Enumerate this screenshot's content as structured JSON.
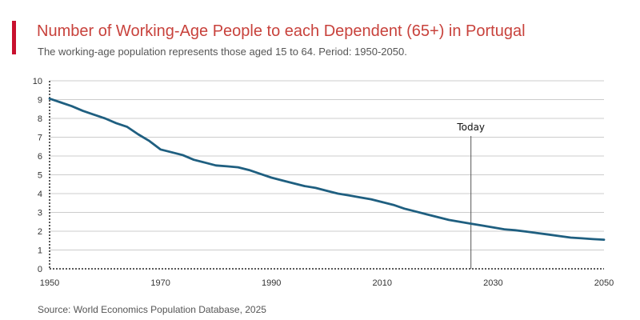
{
  "header": {
    "title": "Number of Working-Age People to each Dependent (65+) in Portugal",
    "subtitle": "The working-age population represents those aged 15 to 64. Period: 1950-2050."
  },
  "footer": {
    "source": "Source: World Economics Population Database, 2025"
  },
  "colors": {
    "accent": "#c8102e",
    "title": "#c8423c",
    "line": "#1f5f80",
    "grid": "#cccccc",
    "marker": "#555555"
  },
  "chart_data": {
    "type": "line",
    "title": "Number of Working-Age People to each Dependent (65+) in Portugal",
    "xlabel": "",
    "ylabel": "",
    "xlim": [
      1950,
      2050
    ],
    "ylim": [
      0,
      10
    ],
    "x_ticks": [
      1950,
      1970,
      1990,
      2010,
      2030,
      2050
    ],
    "y_ticks": [
      0,
      1,
      2,
      3,
      4,
      5,
      6,
      7,
      8,
      9,
      10
    ],
    "grid": true,
    "annotations": [
      {
        "label": "Today",
        "x": 2026
      }
    ],
    "series": [
      {
        "x": [
          1950,
          1952,
          1954,
          1956,
          1958,
          1960,
          1962,
          1964,
          1966,
          1968,
          1970,
          1972,
          1974,
          1976,
          1978,
          1980,
          1982,
          1984,
          1986,
          1988,
          1990,
          1992,
          1994,
          1996,
          1998,
          2000,
          2002,
          2004,
          2006,
          2008,
          2010,
          2012,
          2014,
          2016,
          2018,
          2020,
          2022,
          2024,
          2026,
          2028,
          2030,
          2032,
          2034,
          2036,
          2038,
          2040,
          2042,
          2044,
          2046,
          2048,
          2050
        ],
        "values": [
          9.05,
          8.85,
          8.65,
          8.4,
          8.2,
          8.0,
          7.75,
          7.55,
          7.15,
          6.8,
          6.35,
          6.2,
          6.05,
          5.8,
          5.65,
          5.5,
          5.45,
          5.4,
          5.25,
          5.05,
          4.85,
          4.7,
          4.55,
          4.4,
          4.3,
          4.15,
          4.0,
          3.9,
          3.8,
          3.7,
          3.55,
          3.4,
          3.2,
          3.05,
          2.9,
          2.75,
          2.6,
          2.5,
          2.4,
          2.3,
          2.2,
          2.1,
          2.05,
          1.98,
          1.9,
          1.82,
          1.74,
          1.66,
          1.62,
          1.58,
          1.55
        ]
      }
    ]
  }
}
